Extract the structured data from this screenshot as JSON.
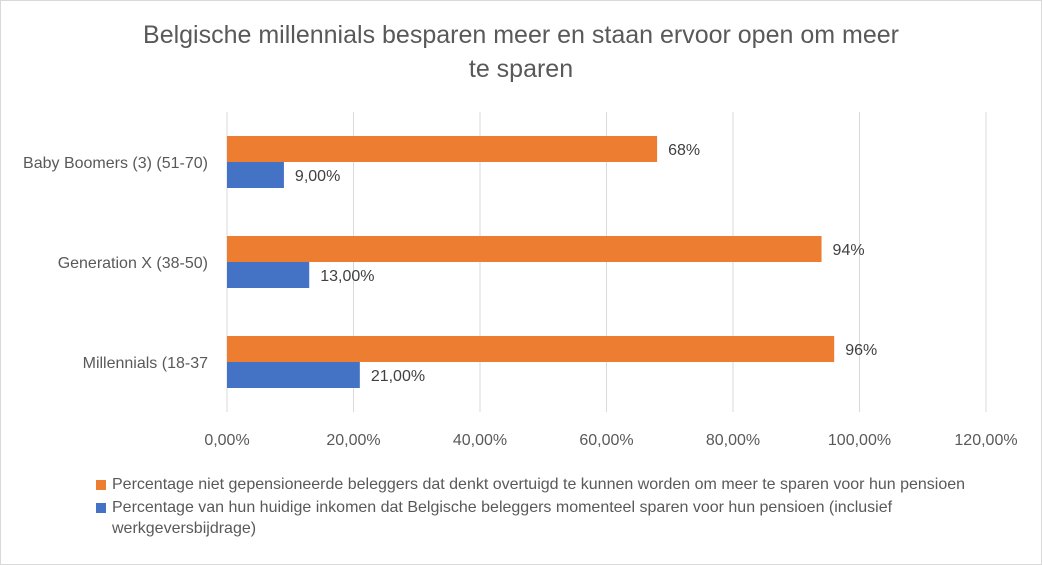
{
  "colors": {
    "orange": "#ED7D31",
    "blue": "#4472C4",
    "grid": "#d9d9d9",
    "text": "#595959"
  },
  "chart_data": {
    "type": "bar",
    "orientation": "horizontal",
    "title_lines": [
      "Belgische millennials besparen meer en staan ervoor open om meer",
      "te sparen"
    ],
    "categories": [
      "Baby Boomers (3) (51-70)",
      "Generation X (38-50)",
      "Millennials (18-37"
    ],
    "series": [
      {
        "name": "Percentage niet gepensioneerde beleggers dat denkt overtuigd te kunnen worden om meer te sparen voor hun pensioen",
        "values": [
          68,
          94,
          96
        ],
        "labels": [
          "68%",
          "94%",
          "96%"
        ],
        "color": "#ED7D31"
      },
      {
        "name": "Percentage van hun huidige inkomen dat Belgische beleggers momenteel sparen voor hun pensioen (inclusief werkgeversbijdrage)",
        "values": [
          9,
          13,
          21
        ],
        "labels": [
          "9,00%",
          "13,00%",
          "21,00%"
        ],
        "color": "#4472C4"
      }
    ],
    "xlim": [
      0,
      120
    ],
    "xticks": [
      0,
      20,
      40,
      60,
      80,
      100,
      120
    ],
    "xtick_labels": [
      "0,00%",
      "20,00%",
      "40,00%",
      "60,00%",
      "80,00%",
      "100,00%",
      "120,00%"
    ],
    "grid": true,
    "legend_position": "bottom"
  }
}
